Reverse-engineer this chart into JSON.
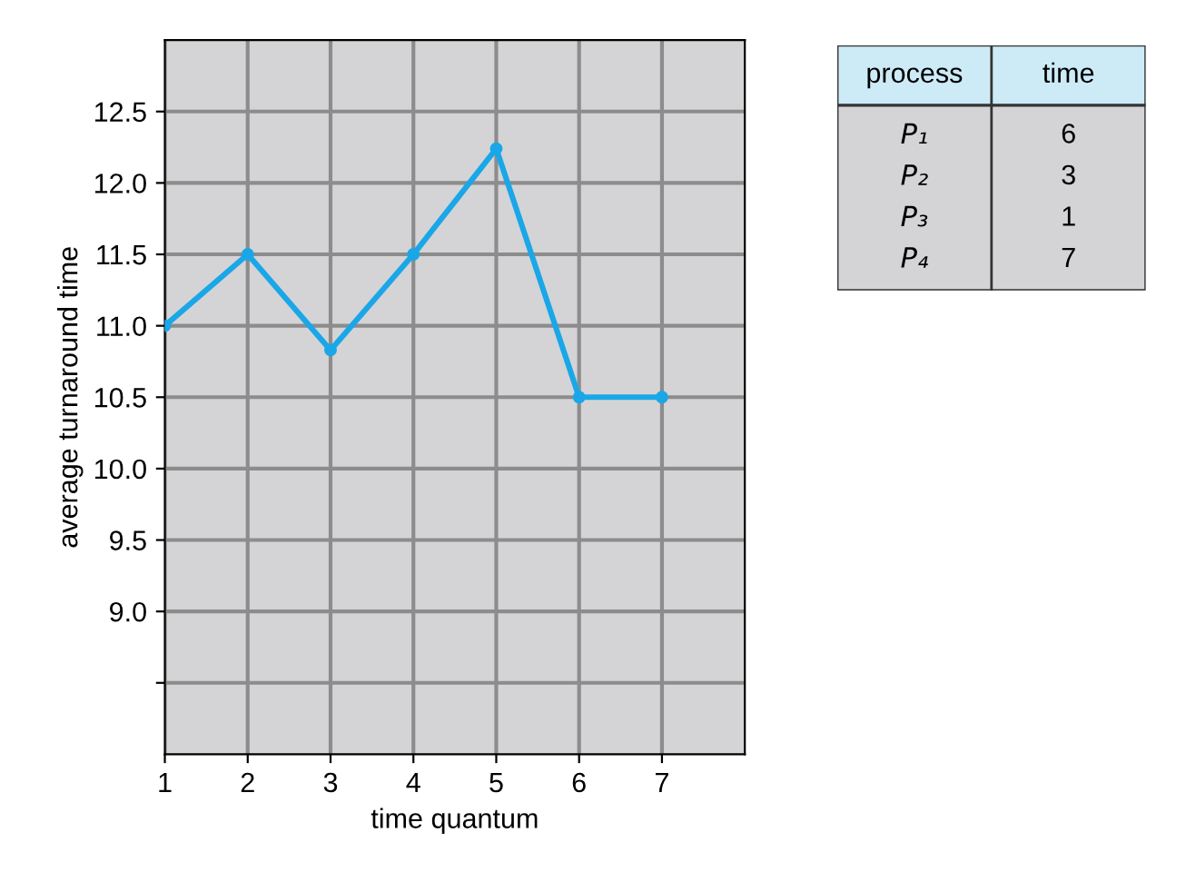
{
  "chart_data": [
    {
      "type": "line",
      "xlabel": "time quantum",
      "ylabel": "average turnaround time",
      "x": [
        1,
        2,
        3,
        4,
        5,
        6,
        7
      ],
      "series": [
        {
          "color": "#1aa7e8",
          "values": [
            11.0,
            11.5,
            10.83,
            11.5,
            12.24,
            10.5,
            10.5
          ]
        }
      ],
      "xlim": [
        1,
        8
      ],
      "xticks": [
        1,
        2,
        3,
        4,
        5,
        6,
        7
      ],
      "ylim": [
        8,
        13
      ],
      "yticks": [
        {
          "value": 8.5,
          "label": null
        },
        {
          "value": 9,
          "label": "9.0"
        },
        9.5,
        {
          "value": 10,
          "label": "10.0"
        },
        10.5,
        {
          "value": 11,
          "label": "11.0"
        },
        11.5,
        {
          "value": 12,
          "label": "12.0"
        },
        12.5
      ],
      "grid": true,
      "marker": "circle",
      "line_style": "solid"
    },
    {
      "type": "other",
      "annotations": [
        "process",
        "time"
      ],
      "categories": [
        "P₁",
        "P₂",
        "P₃",
        "P₄"
      ],
      "values": [
        6,
        3,
        1,
        7
      ],
      "data_labels": true
    }
  ]
}
